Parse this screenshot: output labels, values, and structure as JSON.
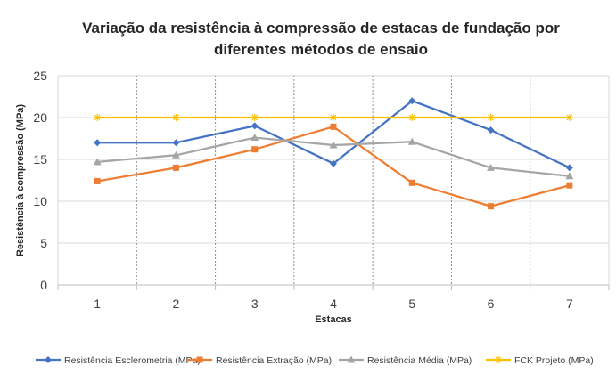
{
  "chart_data": {
    "type": "line",
    "title_line1": "Variação da resistência à compressão de estacas de fundação por",
    "title_line2": "diferentes métodos de ensaio",
    "xlabel": "Estacas",
    "ylabel": "Resistência à compressão (MPa)",
    "categories": [
      "1",
      "2",
      "3",
      "4",
      "5",
      "6",
      "7"
    ],
    "ylim": [
      0,
      25
    ],
    "yticks": [
      "0",
      "5",
      "10",
      "15",
      "20",
      "25"
    ],
    "grid": true,
    "legend_position": "bottom",
    "series": [
      {
        "name": "Resistência Esclerometria (MPa)",
        "color": "#4472C4",
        "marker": "diamond",
        "values": [
          17.0,
          17.0,
          19.0,
          14.5,
          22.0,
          18.5,
          14.0
        ]
      },
      {
        "name": "Resistência Extração (MPa)",
        "color": "#ED7D31",
        "marker": "square",
        "values": [
          12.4,
          14.0,
          16.2,
          18.9,
          12.2,
          9.4,
          11.9
        ]
      },
      {
        "name": "Resistência Média (MPa)",
        "color": "#A5A5A5",
        "marker": "triangle",
        "values": [
          14.7,
          15.5,
          17.6,
          16.7,
          17.1,
          14.0,
          13.0
        ]
      },
      {
        "name": "FCK Projeto (MPa)",
        "color": "#FFC000",
        "marker": "star",
        "values": [
          20,
          20,
          20,
          20,
          20,
          20,
          20
        ]
      }
    ]
  }
}
